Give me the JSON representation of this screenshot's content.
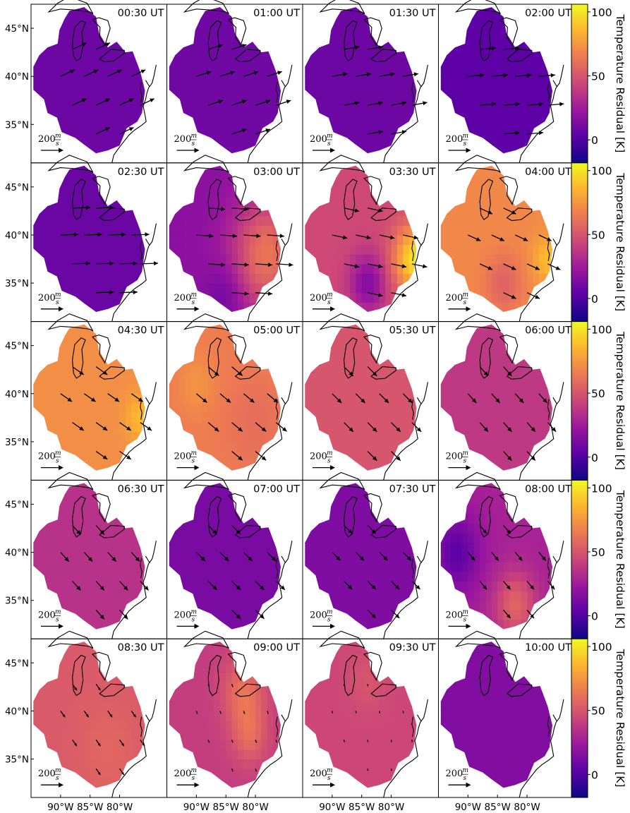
{
  "chart_data": {
    "type": "heatmap",
    "layout": {
      "rows": 5,
      "cols": 4
    },
    "panels": [
      {
        "time": "00:30 UT",
        "base": 8,
        "hot": [],
        "wind_dir": 25,
        "wind_len": 1.0
      },
      {
        "time": "01:00 UT",
        "base": 9,
        "hot": [],
        "wind_dir": 18,
        "wind_len": 1.0
      },
      {
        "time": "01:30 UT",
        "base": 8,
        "hot": [],
        "wind_dir": 10,
        "wind_len": 1.0
      },
      {
        "time": "02:00 UT",
        "base": 3,
        "hot": [],
        "wind_dir": 5,
        "wind_len": 1.05
      },
      {
        "time": "02:30 UT",
        "base": 7,
        "hot": [],
        "wind_dir": 2,
        "wind_len": 1.15
      },
      {
        "time": "03:00 UT",
        "base": 18,
        "hot": [
          {
            "lon": -78,
            "lat": 38,
            "r": 6,
            "v": 45
          },
          {
            "lon": -85,
            "lat": 34,
            "r": 3,
            "v": -12
          }
        ],
        "wind_dir": -4,
        "wind_len": 1.1
      },
      {
        "time": "03:30 UT",
        "base": 45,
        "hot": [
          {
            "lon": -76,
            "lat": 37.5,
            "r": 3.5,
            "v": 55
          },
          {
            "lon": -84,
            "lat": 35,
            "r": 3,
            "v": -30
          }
        ],
        "wind_dir": -12,
        "wind_len": 1.0
      },
      {
        "time": "04:00 UT",
        "base": 70,
        "hot": [
          {
            "lon": -84,
            "lat": 35,
            "r": 3,
            "v": -15
          },
          {
            "lon": -76.5,
            "lat": 37.5,
            "r": 2.5,
            "v": 18
          }
        ],
        "wind_dir": -25,
        "wind_len": 0.9
      },
      {
        "time": "04:30 UT",
        "base": 72,
        "hot": [
          {
            "lon": -76.5,
            "lat": 37.5,
            "r": 2.5,
            "v": 15
          }
        ],
        "wind_dir": -35,
        "wind_len": 0.9
      },
      {
        "time": "05:00 UT",
        "base": 66,
        "hot": [
          {
            "lon": -90,
            "lat": 41,
            "r": 3,
            "v": 8
          },
          {
            "lon": -80,
            "lat": 37,
            "r": 5,
            "v": -6
          }
        ],
        "wind_dir": -40,
        "wind_len": 0.9
      },
      {
        "time": "05:30 UT",
        "base": 50,
        "hot": [],
        "wind_dir": -45,
        "wind_len": 0.85
      },
      {
        "time": "06:00 UT",
        "base": 38,
        "hot": [],
        "wind_dir": -48,
        "wind_len": 0.8
      },
      {
        "time": "06:30 UT",
        "base": 35,
        "hot": [],
        "wind_dir": -48,
        "wind_len": 0.8
      },
      {
        "time": "07:00 UT",
        "base": 12,
        "hot": [],
        "wind_dir": -45,
        "wind_len": 0.8
      },
      {
        "time": "07:30 UT",
        "base": 14,
        "hot": [],
        "wind_dir": -45,
        "wind_len": 0.75
      },
      {
        "time": "08:00 UT",
        "base": 28,
        "hot": [
          {
            "lon": -92,
            "lat": 40,
            "r": 4,
            "v": -25
          },
          {
            "lon": -82,
            "lat": 34.5,
            "r": 3.5,
            "v": 28
          }
        ],
        "wind_dir": -50,
        "wind_len": 0.7
      },
      {
        "time": "08:30 UT",
        "base": 52,
        "hot": [
          {
            "lon": -82,
            "lat": 36,
            "r": 5,
            "v": 5
          }
        ],
        "wind_dir": -55,
        "wind_len": 0.5
      },
      {
        "time": "09:00 UT",
        "base": 40,
        "hot": [
          {
            "lon": -82,
            "lat": 42,
            "r": 3.5,
            "v": 22
          },
          {
            "lon": -81,
            "lat": 37.5,
            "r": 3,
            "v": 18
          }
        ],
        "wind_dir": -70,
        "wind_len": 0.2
      },
      {
        "time": "09:30 UT",
        "base": 44,
        "hot": [
          {
            "lon": -84,
            "lat": 43,
            "r": 3,
            "v": 6
          }
        ],
        "wind_dir": -80,
        "wind_len": 0.15
      },
      {
        "time": "10:00 UT",
        "base": 15,
        "hot": [],
        "wind_dir": -90,
        "wind_len": 0.0
      }
    ],
    "x_ticks": [
      "90°W",
      "85°W",
      "80°W"
    ],
    "x_tick_values": [
      -90,
      -85,
      -80
    ],
    "y_ticks": [
      "45°N",
      "40°N",
      "35°N"
    ],
    "y_tick_values": [
      45,
      40,
      35
    ],
    "lon_range": [
      -95,
      -72
    ],
    "lat_range": [
      31,
      47.5
    ],
    "colorbar": {
      "label": "Temperature Residual [K]",
      "ticks": [
        "0",
        "50",
        "100"
      ],
      "tick_values": [
        0,
        50,
        100
      ],
      "range": [
        -18,
        106
      ],
      "colormap": "plasma"
    },
    "scale_arrow": {
      "value": "200",
      "unit_num": "m",
      "unit_den": "s"
    },
    "colormap_stops": [
      "#0d0887",
      "#5c01a6",
      "#9c179e",
      "#cc4778",
      "#ed7953",
      "#fdb42f",
      "#f0f921"
    ]
  }
}
